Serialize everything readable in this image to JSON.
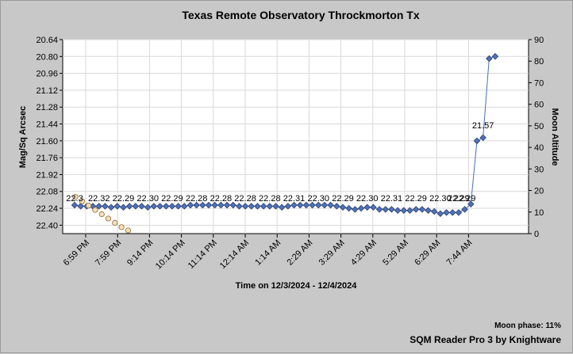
{
  "chart_data": {
    "type": "line",
    "title": "Texas Remote Observatory   Throckmorton Tx",
    "xlabel": "Time on 12/3/2024 - 12/4/2024",
    "ylabel": "Mag/Sq Arcsec",
    "y2label": "Moon Altitude",
    "ylim": [
      20.64,
      22.48
    ],
    "y_reversed": true,
    "y_ticks": [
      "20.64",
      "20.80",
      "20.96",
      "21.12",
      "21.28",
      "21.44",
      "21.60",
      "21.76",
      "21.92",
      "22.08",
      "22.24",
      "22.40"
    ],
    "y2lim": [
      0,
      90
    ],
    "y2_ticks": [
      "0",
      "10",
      "20",
      "30",
      "40",
      "50",
      "60",
      "70",
      "80",
      "90"
    ],
    "x_range_hours": [
      18.67,
      27.75
    ],
    "x_ticks": [
      {
        "label": "6:59 PM",
        "h": 18.98
      },
      {
        "label": "7:59 PM",
        "h": 19.98
      },
      {
        "label": "9:14 PM",
        "h": 21.23
      },
      {
        "label": "10:14 PM",
        "h": 22.23
      },
      {
        "label": "11:14 PM",
        "h": 23.23
      },
      {
        "label": "12:14 AM",
        "h": 24.23
      },
      {
        "label": "1:14 AM",
        "h": 25.23
      },
      {
        "label": "2:29 AM",
        "h": 26.48
      },
      {
        "label": "3:29 AM",
        "h": 27.48
      },
      {
        "label": "4:29 AM",
        "h": 28.48
      },
      {
        "label": "5:29 AM",
        "h": 29.48
      },
      {
        "label": "6:29 AM",
        "h": 30.48
      },
      {
        "label": "7:44 AM",
        "h": 31.73
      }
    ],
    "series": [
      {
        "name": "",
        "color": "#4a6fb5",
        "marker_color": "#4f72b8",
        "values": [
          22.21,
          22.22,
          22.22,
          22.22,
          22.22,
          22.22,
          22.23,
          22.22,
          22.23,
          22.22,
          22.22,
          22.22,
          22.23,
          22.22,
          22.22,
          22.22,
          22.22,
          22.22,
          22.22,
          22.21,
          22.21,
          22.21,
          22.21,
          22.21,
          22.21,
          22.21,
          22.21,
          22.22,
          22.22,
          22.22,
          22.22,
          22.22,
          22.22,
          22.22,
          22.23,
          22.22,
          22.21,
          22.21,
          22.21,
          22.21,
          22.21,
          22.21,
          22.21,
          22.22,
          22.23,
          22.24,
          22.25,
          22.24,
          22.23,
          22.23,
          22.25,
          22.25,
          22.25,
          22.26,
          22.26,
          22.26,
          22.25,
          22.25,
          22.26,
          22.27,
          22.29,
          22.28,
          22.28,
          22.28,
          22.25,
          22.2,
          21.6,
          21.57,
          20.82,
          20.8
        ]
      },
      {
        "name": "",
        "color": "#e8c89a",
        "marker_color": "#f6dfb6",
        "values": [
          17,
          15,
          13,
          11,
          9,
          7,
          5,
          3,
          1.5
        ]
      }
    ],
    "data_labels": [
      "22.3",
      "22.32",
      "22.29",
      "22.30",
      "22.29",
      "22.28",
      "22.28",
      "22.28",
      "22.28",
      "22.31",
      "22.30",
      "22.29",
      "22.30",
      "22.31",
      "22.29",
      "22.30",
      "22.29",
      "22.29",
      "21.57"
    ],
    "grid": true,
    "legend": "none"
  },
  "footer": {
    "moon_phase": "Moon phase: 11%",
    "credit": "SQM Reader Pro 3 by Knightware"
  }
}
